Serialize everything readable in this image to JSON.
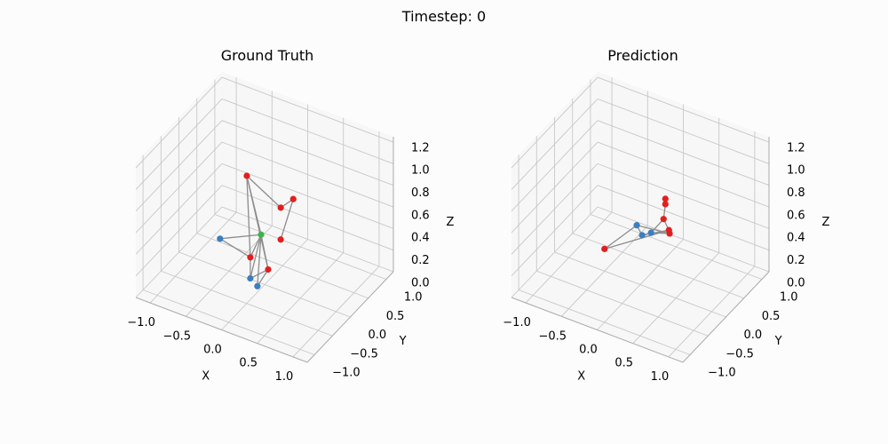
{
  "figure": {
    "suptitle": "Timestep: 0"
  },
  "colors": {
    "background": "#fcfcfc",
    "grid": "#c8c8c8",
    "pane_edge": "#aaaaaa",
    "bone": "#8c8c8c",
    "joint_blue": "#3a7fc0",
    "joint_red": "#e02020",
    "joint_green": "#3fb34a"
  },
  "chart_data": [
    {
      "type": "scatter3d-skeleton",
      "title": "Ground Truth",
      "xlabel": "X",
      "ylabel": "Y",
      "zlabel": "Z",
      "xticks": [
        "−1.0",
        "−0.5",
        "0.0",
        "0.5",
        "1.0"
      ],
      "yticks": [
        "−1.0",
        "−0.5",
        "0.0",
        "0.5",
        "1.0"
      ],
      "zticks": [
        "0.0",
        "0.2",
        "0.4",
        "0.6",
        "0.8",
        "1.0",
        "1.2"
      ],
      "xlim": [
        -1.2,
        1.2
      ],
      "ylim": [
        -1.2,
        1.2
      ],
      "zlim": [
        0,
        1.25
      ],
      "grid": true,
      "joints": [
        {
          "x": -0.05,
          "y": 0.0,
          "z": 0.45,
          "color": "green"
        },
        {
          "x": -0.75,
          "y": 0.25,
          "z": 0.15,
          "color": "blue"
        },
        {
          "x": -0.05,
          "y": -0.3,
          "z": 0.15,
          "color": "blue"
        },
        {
          "x": 0.1,
          "y": -0.4,
          "z": 0.15,
          "color": "blue"
        },
        {
          "x": -0.35,
          "y": 0.2,
          "z": 0.85,
          "color": "red"
        },
        {
          "x": 0.1,
          "y": 0.25,
          "z": 0.65,
          "color": "red"
        },
        {
          "x": 0.25,
          "y": 0.3,
          "z": 0.75,
          "color": "red"
        },
        {
          "x": 0.2,
          "y": 0.05,
          "z": 0.45,
          "color": "red"
        },
        {
          "x": -0.15,
          "y": -0.1,
          "z": 0.25,
          "color": "red"
        },
        {
          "x": 0.1,
          "y": -0.1,
          "z": 0.2,
          "color": "red"
        }
      ],
      "bones": [
        [
          0,
          1
        ],
        [
          0,
          2
        ],
        [
          0,
          3
        ],
        [
          0,
          4
        ],
        [
          0,
          8
        ],
        [
          0,
          9
        ],
        [
          4,
          5
        ],
        [
          4,
          8
        ],
        [
          4,
          9
        ],
        [
          5,
          6
        ],
        [
          6,
          7
        ],
        [
          8,
          2
        ],
        [
          9,
          2
        ],
        [
          9,
          3
        ],
        [
          1,
          8
        ]
      ]
    },
    {
      "type": "scatter3d-skeleton",
      "title": "Prediction",
      "xlabel": "X",
      "ylabel": "Y",
      "zlabel": "Z",
      "xticks": [
        "−1.0",
        "−0.5",
        "0.0",
        "0.5",
        "1.0"
      ],
      "yticks": [
        "−1.0",
        "−0.5",
        "0.0",
        "0.5",
        "1.0"
      ],
      "zticks": [
        "0.0",
        "0.2",
        "0.4",
        "0.6",
        "0.8",
        "1.0",
        "1.2"
      ],
      "xlim": [
        -1.2,
        1.2
      ],
      "ylim": [
        -1.2,
        1.2
      ],
      "zlim": [
        0,
        1.25
      ],
      "grid": true,
      "joints": [
        {
          "x": -0.3,
          "y": 0.5,
          "z": 0.3,
          "color": "blue"
        },
        {
          "x": -0.2,
          "y": 0.45,
          "z": 0.25,
          "color": "blue"
        },
        {
          "x": -0.1,
          "y": 0.5,
          "z": 0.28,
          "color": "blue"
        },
        {
          "x": 0.0,
          "y": 0.7,
          "z": 0.55,
          "color": "red"
        },
        {
          "x": 0.0,
          "y": 0.7,
          "z": 0.5,
          "color": "red"
        },
        {
          "x": 0.0,
          "y": 0.65,
          "z": 0.38,
          "color": "red"
        },
        {
          "x": 0.1,
          "y": 0.6,
          "z": 0.32,
          "color": "red"
        },
        {
          "x": 0.12,
          "y": 0.58,
          "z": 0.3,
          "color": "red"
        },
        {
          "x": -0.4,
          "y": -0.2,
          "z": 0.3,
          "color": "red"
        }
      ],
      "bones": [
        [
          0,
          1
        ],
        [
          1,
          2
        ],
        [
          2,
          5
        ],
        [
          5,
          6
        ],
        [
          6,
          7
        ],
        [
          0,
          7
        ],
        [
          1,
          6
        ],
        [
          2,
          7
        ],
        [
          0,
          8
        ],
        [
          8,
          6
        ],
        [
          3,
          4
        ],
        [
          4,
          5
        ]
      ]
    }
  ]
}
